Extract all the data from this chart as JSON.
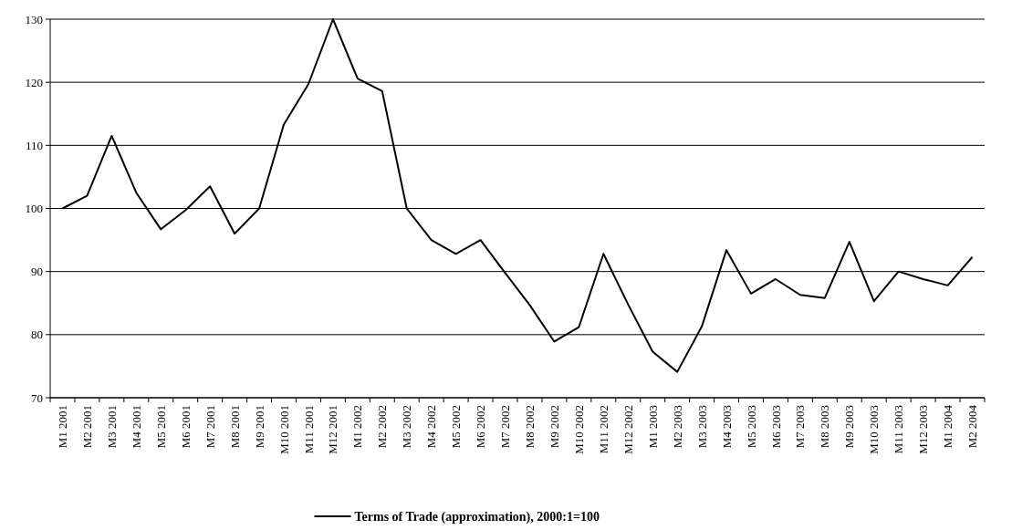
{
  "chart_data": {
    "type": "line",
    "categories": [
      "M1 2001",
      "M2 2001",
      "M3 2001",
      "M4 2001",
      "M5 2001",
      "M6 2001",
      "M7 2001",
      "M8 2001",
      "M9 2001",
      "M10 2001",
      "M11 2001",
      "M12 2001",
      "M1 2002",
      "M2 2002",
      "M3 2002",
      "M4 2002",
      "M5 2002",
      "M6 2002",
      "M7 2002",
      "M8 2002",
      "M9 2002",
      "M10 2002",
      "M11 2002",
      "M12 2002",
      "M1 2003",
      "M2 2003",
      "M3 2003",
      "M4 2003",
      "M5 2003",
      "M6 2003",
      "M7 2003",
      "M8 2003",
      "M9 2003",
      "M10 2003",
      "M11 2003",
      "M12 2003",
      "M1 2004",
      "M2 2004"
    ],
    "series": [
      {
        "name": "Terms of Trade (approximation), 2000:1=100",
        "color": "#000000",
        "values": [
          100,
          102,
          111.5,
          102.5,
          96.7,
          99.7,
          103.5,
          96,
          100,
          113.3,
          119.7,
          130,
          120.6,
          118.6,
          100,
          95,
          92.8,
          95,
          89.8,
          84.7,
          78.9,
          81.2,
          92.8,
          84.8,
          77.3,
          74.1,
          81.3,
          93.4,
          86.5,
          88.8,
          86.3,
          85.8,
          94.7,
          85.3,
          90,
          88.8,
          87.8,
          92.3
        ]
      }
    ],
    "ylim": [
      70,
      130
    ],
    "yticks": [
      70,
      80,
      90,
      100,
      110,
      120,
      130
    ],
    "grid": "y",
    "legend": "bottom",
    "marker": "none",
    "line_style": "solid"
  }
}
